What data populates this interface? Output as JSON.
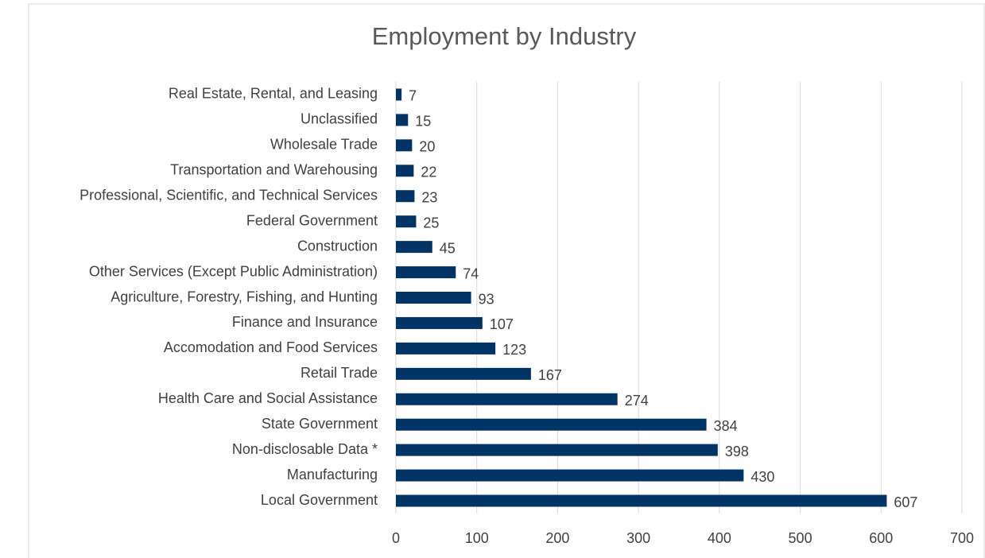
{
  "chart_data": {
    "type": "bar",
    "orientation": "horizontal",
    "title": "Employment by Industry",
    "categories": [
      "Real Estate, Rental, and Leasing",
      "Unclassified",
      "Wholesale Trade",
      "Transportation and Warehousing",
      "Professional, Scientific, and Technical Services",
      "Federal Government",
      "Construction",
      "Other Services (Except Public Administration)",
      "Agriculture, Forestry, Fishing, and Hunting",
      "Finance and Insurance",
      "Accomodation and Food Services",
      "Retail Trade",
      "Health Care and Social Assistance",
      "State Government",
      "Non-disclosable Data *",
      "Manufacturing",
      "Local Government"
    ],
    "values": [
      7,
      15,
      20,
      22,
      23,
      25,
      45,
      74,
      93,
      107,
      123,
      167,
      274,
      384,
      398,
      430,
      607
    ],
    "color": "#003366",
    "xlim": [
      0,
      700
    ],
    "xticks": [
      0,
      100,
      200,
      300,
      400,
      500,
      600,
      700
    ],
    "grid": true
  }
}
